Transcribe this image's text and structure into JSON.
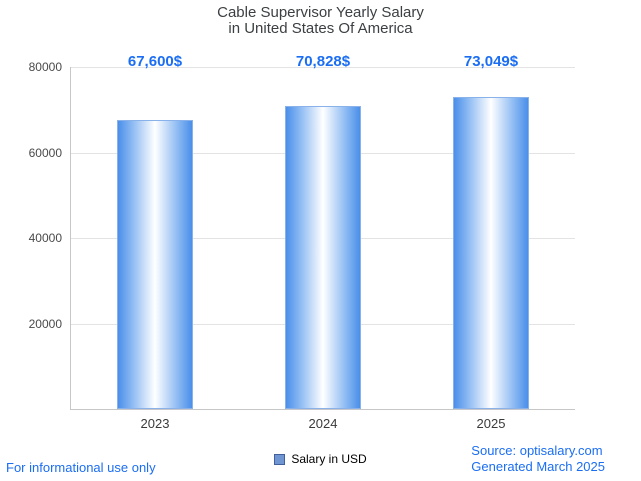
{
  "chart_data": {
    "type": "bar",
    "title_lines": [
      "Cable Supervisor Yearly Salary",
      "in United States Of America"
    ],
    "categories": [
      "2023",
      "2024",
      "2025"
    ],
    "values": [
      67600,
      70828,
      73049
    ],
    "value_labels": [
      "67,600$",
      "70,828$",
      "73,049$"
    ],
    "series": [
      {
        "name": "Salary in USD",
        "values": [
          67600,
          70828,
          73049
        ]
      }
    ],
    "xlabel": "",
    "ylabel": "",
    "ylim": [
      0,
      80000
    ],
    "yticks": [
      20000,
      40000,
      60000,
      80000
    ],
    "grid": true,
    "legend_position": "bottom",
    "bar_color_edge": "#4a8fe9",
    "bar_color_center": "#ffffff",
    "value_label_color": "#1b6ef3"
  },
  "legend": {
    "label": "Salary in USD"
  },
  "footer": {
    "left": "For informational use only",
    "source": "Source: optisalary.com",
    "generated": "Generated March 2025"
  }
}
